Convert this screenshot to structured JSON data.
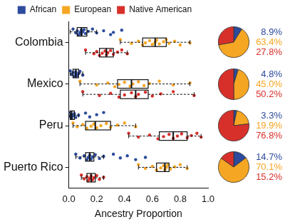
{
  "chart_data": {
    "type": "box",
    "x_label": "Ancestry Proportion",
    "categories": [
      "Colombia",
      "Mexico",
      "Peru",
      "Puerto Rico"
    ],
    "xlim": [
      0,
      1
    ],
    "xticks": [
      {
        "value": 0,
        "label": "0.0"
      },
      {
        "value": 0.2,
        "label": "0.2"
      },
      {
        "value": 0.4,
        "label": "0.4"
      },
      {
        "value": 0.6,
        "label": "0.6"
      },
      {
        "value": 0.8,
        "label": "0.8"
      },
      {
        "value": 1,
        "label": "1.0"
      }
    ],
    "legend": "top",
    "grid": false,
    "series": [
      {
        "name": "African",
        "color": "#2d4b9c",
        "box": [
          [
            0.01,
            0.06,
            0.09,
            0.13,
            0.2
          ],
          [
            0.01,
            0.03,
            0.05,
            0.07,
            0.1
          ],
          [
            0.0,
            0.01,
            0.02,
            0.04,
            0.07
          ],
          [
            0.05,
            0.12,
            0.15,
            0.18,
            0.25
          ]
        ],
        "points": [
          [
            0.03,
            0.05,
            0.06,
            0.07,
            0.08,
            0.09,
            0.09,
            0.1,
            0.11,
            0.12,
            0.14,
            0.17,
            0.2,
            0.25,
            0.3,
            0.32,
            0.38
          ],
          [
            0.01,
            0.02,
            0.03,
            0.04,
            0.05,
            0.05,
            0.06,
            0.07,
            0.08,
            0.1
          ],
          [
            0.0,
            0.01,
            0.02,
            0.02,
            0.03,
            0.04,
            0.05,
            0.07,
            0.12,
            0.15,
            0.2,
            0.25
          ],
          [
            0.05,
            0.08,
            0.11,
            0.13,
            0.14,
            0.15,
            0.16,
            0.17,
            0.19,
            0.22,
            0.25,
            0.32,
            0.37,
            0.42,
            0.48,
            0.55
          ]
        ],
        "percent": [
          8.9,
          4.8,
          3.3,
          14.7
        ],
        "percent_labels": [
          "8.9%",
          "4.8%",
          "3.3%",
          "14.7%"
        ]
      },
      {
        "name": "European",
        "color": "#f5a623",
        "box": [
          [
            0.37,
            0.53,
            0.62,
            0.7,
            0.87
          ],
          [
            0.08,
            0.35,
            0.45,
            0.57,
            0.87
          ],
          [
            0.03,
            0.12,
            0.19,
            0.3,
            0.48
          ],
          [
            0.5,
            0.63,
            0.69,
            0.72,
            0.85
          ]
        ],
        "points": [
          [
            0.37,
            0.45,
            0.5,
            0.53,
            0.55,
            0.58,
            0.6,
            0.62,
            0.63,
            0.65,
            0.68,
            0.7,
            0.72,
            0.76,
            0.8,
            0.87
          ],
          [
            0.08,
            0.2,
            0.28,
            0.33,
            0.36,
            0.4,
            0.44,
            0.46,
            0.5,
            0.54,
            0.58,
            0.65,
            0.75,
            0.87
          ],
          [
            0.03,
            0.06,
            0.1,
            0.13,
            0.16,
            0.18,
            0.2,
            0.23,
            0.27,
            0.3,
            0.35,
            0.4,
            0.48
          ],
          [
            0.5,
            0.55,
            0.6,
            0.63,
            0.66,
            0.68,
            0.69,
            0.7,
            0.71,
            0.73,
            0.76,
            0.8,
            0.85
          ]
        ],
        "percent": [
          63.4,
          45.0,
          19.9,
          70.1
        ],
        "percent_labels": [
          "63.4%",
          "45.0%",
          "19.9%",
          "70.1%"
        ]
      },
      {
        "name": "Native American",
        "color": "#d7302b",
        "box": [
          [
            0.12,
            0.22,
            0.27,
            0.32,
            0.42
          ],
          [
            0.1,
            0.37,
            0.48,
            0.57,
            0.9
          ],
          [
            0.43,
            0.65,
            0.75,
            0.85,
            0.95
          ],
          [
            0.09,
            0.13,
            0.16,
            0.19,
            0.25
          ]
        ],
        "points": [
          [
            0.12,
            0.18,
            0.2,
            0.22,
            0.24,
            0.26,
            0.27,
            0.28,
            0.3,
            0.32,
            0.35,
            0.38,
            0.42
          ],
          [
            0.1,
            0.22,
            0.3,
            0.36,
            0.4,
            0.45,
            0.48,
            0.5,
            0.55,
            0.6,
            0.66,
            0.75,
            0.9
          ],
          [
            0.43,
            0.5,
            0.58,
            0.64,
            0.68,
            0.72,
            0.75,
            0.78,
            0.81,
            0.85,
            0.88,
            0.92,
            0.95
          ],
          [
            0.09,
            0.11,
            0.13,
            0.14,
            0.15,
            0.16,
            0.17,
            0.18,
            0.2,
            0.22,
            0.25
          ]
        ],
        "percent": [
          27.8,
          50.2,
          76.8,
          15.2
        ],
        "percent_labels": [
          "27.8%",
          "50.2%",
          "76.8%",
          "15.2%"
        ]
      }
    ]
  }
}
